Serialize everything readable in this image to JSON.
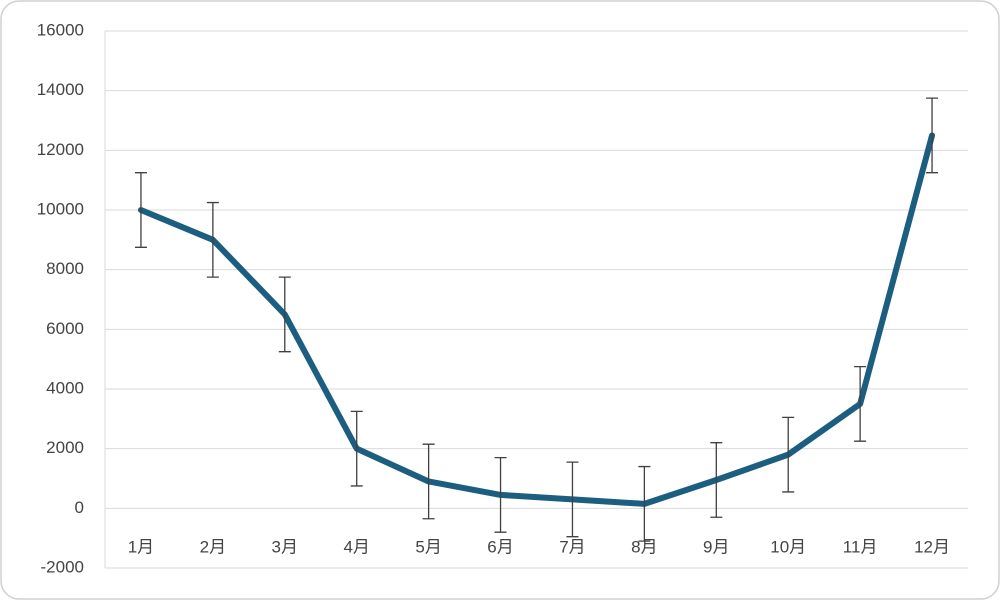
{
  "chart_data": {
    "type": "line",
    "categories": [
      "1月",
      "2月",
      "3月",
      "4月",
      "5月",
      "6月",
      "7月",
      "8月",
      "9月",
      "10月",
      "11月",
      "12月"
    ],
    "values": [
      10000,
      9000,
      6500,
      2000,
      900,
      450,
      300,
      150,
      950,
      1800,
      3500,
      12500
    ],
    "errors": [
      1250,
      1250,
      1250,
      1250,
      1250,
      1250,
      1250,
      1250,
      1250,
      1250,
      1250,
      1250
    ],
    "color": "#1b5e80",
    "error_color": "#404040",
    "ylim": [
      -2000,
      16000
    ],
    "yticks": [
      -2000,
      0,
      2000,
      4000,
      6000,
      8000,
      10000,
      12000,
      14000,
      16000
    ],
    "grid": true
  }
}
